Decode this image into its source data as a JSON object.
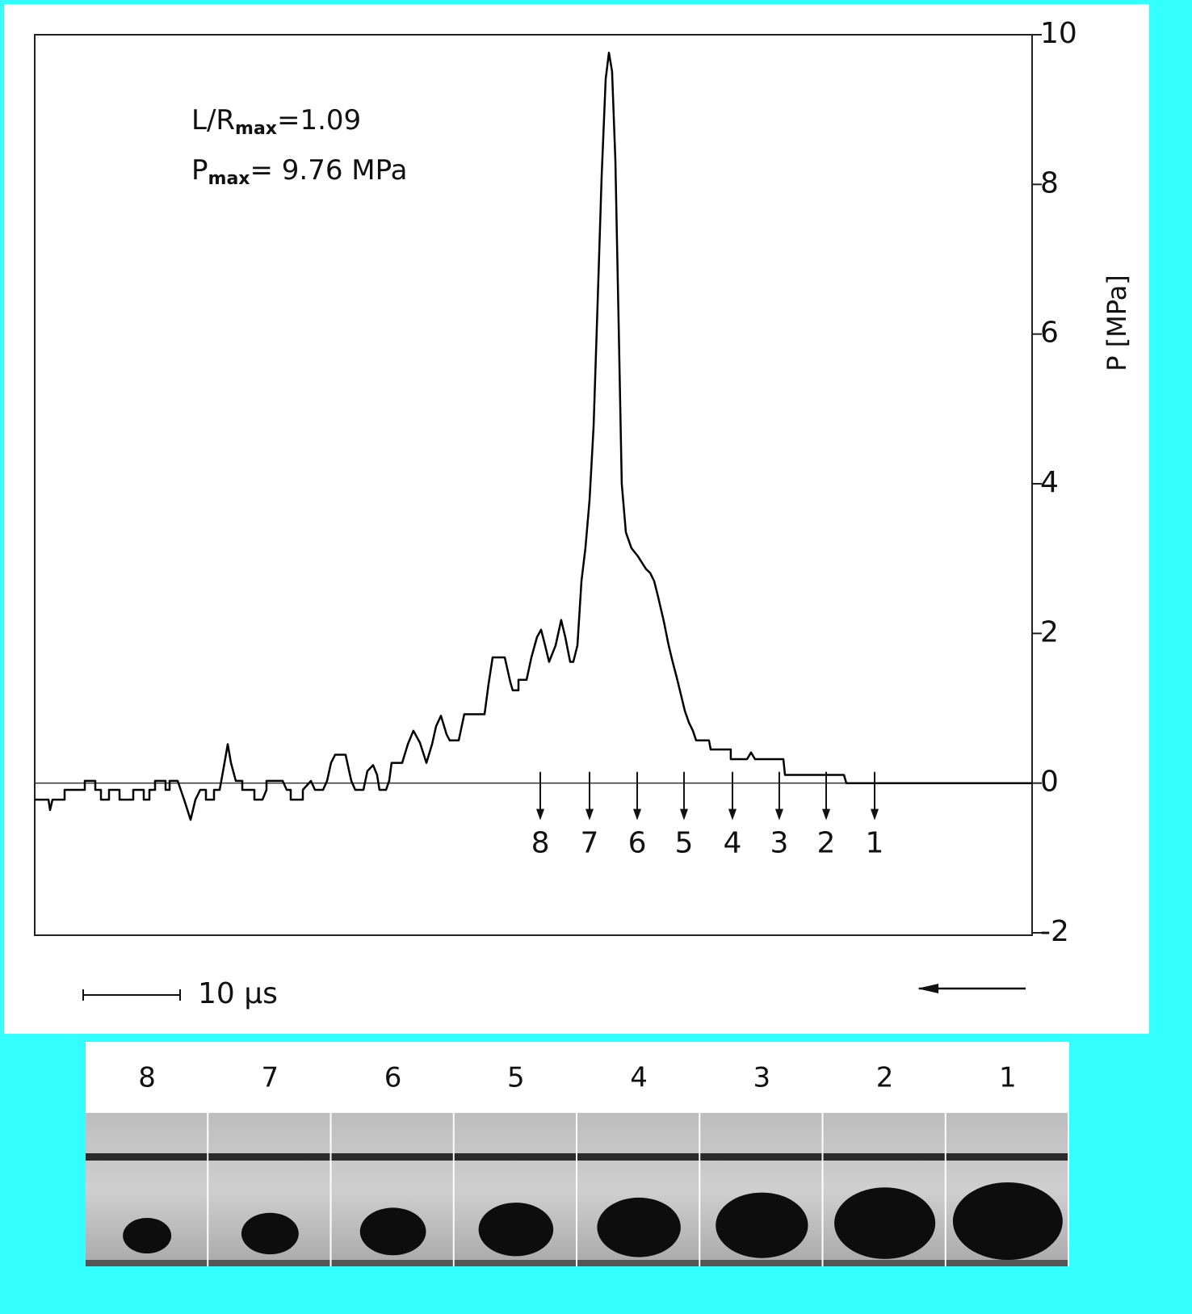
{
  "chart_data": {
    "type": "line",
    "annotations": [
      {
        "text": "L/R",
        "sub": "max",
        "rest": "=1.09"
      },
      {
        "text": "P",
        "sub": "max",
        "rest": "= 9.76 MPa"
      }
    ],
    "ylabel": "P [MPa]",
    "xlim": [
      0,
      102.92
    ],
    "ylim": [
      -2,
      10
    ],
    "yticks": [
      -2,
      0,
      2,
      4,
      6,
      8,
      10
    ],
    "color": "#000000",
    "x": [
      0,
      1.42,
      1.58,
      1.83,
      3.08,
      3.08,
      5.17,
      5.17,
      6.25,
      6.25,
      6.83,
      6.83,
      7.67,
      7.67,
      8.75,
      8.75,
      10.17,
      10.17,
      11.25,
      11.25,
      11.83,
      11.83,
      12.42,
      12.42,
      13.5,
      13.5,
      13.92,
      13.92,
      14.75,
      15.42,
      16.08,
      16.58,
      17.08,
      17.67,
      17.67,
      18.5,
      18.5,
      19.08,
      19.58,
      19.92,
      20.25,
      20.75,
      21.42,
      21.42,
      22.67,
      22.67,
      23.5,
      23.92,
      23.92,
      25.58,
      26,
      26.42,
      26.42,
      27.67,
      27.67,
      28.5,
      28.92,
      29.75,
      30.17,
      30.58,
      31,
      32.08,
      32.67,
      33.08,
      33.92,
      34.33,
      34.92,
      35.33,
      35.58,
      36.25,
      36.58,
      36.83,
      37.92,
      38.5,
      39.08,
      39.75,
      40.42,
      41,
      41.42,
      41.92,
      42.5,
      42.83,
      43.75,
      44.33,
      46.42,
      46.83,
      47.25,
      48.5,
      49.08,
      49.33,
      49.92,
      49.92,
      50.75,
      51.25,
      51.83,
      52.25,
      52.67,
      53.08,
      53.75,
      54.33,
      54.75,
      55.25,
      55.58,
      56,
      56.42,
      56.83,
      57.25,
      57.67,
      58.08,
      58.5,
      58.92,
      59.25,
      59.58,
      59.92,
      60.25,
      60.58,
      61,
      61.58,
      62.25,
      63.08,
      63.5,
      63.92,
      64.33,
      64.92,
      65.42,
      65.83,
      66.25,
      66.67,
      67.08,
      67.5,
      67.92,
      68.25,
      69.58,
      69.75,
      71.83,
      71.83,
      73.5,
      73.92,
      74.33,
      77.25,
      77.42,
      83.5,
      83.75,
      102.92
    ],
    "values": [
      -0.22,
      -0.22,
      -0.36,
      -0.22,
      -0.22,
      -0.09,
      -0.09,
      0.03,
      0.03,
      -0.09,
      -0.09,
      -0.22,
      -0.22,
      -0.09,
      -0.09,
      -0.22,
      -0.22,
      -0.09,
      -0.09,
      -0.22,
      -0.22,
      -0.09,
      -0.09,
      0.03,
      0.03,
      -0.09,
      -0.09,
      0.03,
      0.03,
      -0.22,
      -0.49,
      -0.22,
      -0.09,
      -0.09,
      -0.22,
      -0.22,
      -0.09,
      -0.09,
      0.27,
      0.52,
      0.27,
      0.03,
      0.03,
      -0.09,
      -0.09,
      -0.22,
      -0.22,
      -0.09,
      0.03,
      0.03,
      -0.09,
      -0.09,
      -0.22,
      -0.22,
      -0.09,
      0.03,
      -0.09,
      -0.09,
      0.03,
      0.27,
      0.38,
      0.38,
      0.03,
      -0.09,
      -0.09,
      0.16,
      0.24,
      0.11,
      -0.09,
      -0.09,
      0.03,
      0.27,
      0.27,
      0.52,
      0.7,
      0.54,
      0.27,
      0.52,
      0.76,
      0.9,
      0.65,
      0.57,
      0.57,
      0.92,
      0.92,
      1.32,
      1.68,
      1.68,
      1.35,
      1.24,
      1.24,
      1.38,
      1.38,
      1.68,
      1.95,
      2.05,
      1.84,
      1.62,
      1.84,
      2.18,
      1.95,
      1.62,
      1.62,
      1.84,
      2.7,
      3.14,
      3.78,
      4.76,
      6.38,
      8.11,
      9.41,
      9.76,
      9.51,
      8.32,
      6.16,
      4,
      3.35,
      3.14,
      3.03,
      2.86,
      2.81,
      2.7,
      2.49,
      2.16,
      1.84,
      1.62,
      1.41,
      1.19,
      0.97,
      0.81,
      0.7,
      0.57,
      0.57,
      0.45,
      0.45,
      0.32,
      0.32,
      0.41,
      0.32,
      0.32,
      0.11,
      0.11,
      0,
      0
    ],
    "markers": [
      {
        "label": "8",
        "x": 52.17
      },
      {
        "label": "7",
        "x": 57.25
      },
      {
        "label": "6",
        "x": 62.17
      },
      {
        "label": "5",
        "x": 67
      },
      {
        "label": "4",
        "x": 72
      },
      {
        "label": "3",
        "x": 76.83
      },
      {
        "label": "2",
        "x": 81.67
      },
      {
        "label": "1",
        "x": 86.67
      }
    ],
    "scale_bar": {
      "length": 10,
      "label": "10 µs"
    }
  },
  "photo_strip": {
    "labels": [
      "8",
      "7",
      "6",
      "5",
      "4",
      "3",
      "2",
      "1"
    ]
  }
}
